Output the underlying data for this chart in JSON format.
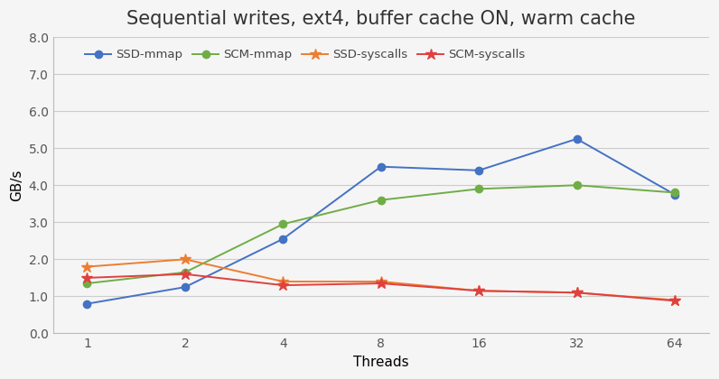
{
  "title": "Sequential writes, ext4, buffer cache ON, warm cache",
  "xlabel": "Threads",
  "ylabel": "GB/s",
  "x_values": [
    1,
    2,
    4,
    8,
    16,
    32,
    64
  ],
  "series": [
    {
      "label": "SSD-mmap",
      "color": "#4472C4",
      "marker": "o",
      "values": [
        0.8,
        1.25,
        2.55,
        4.5,
        4.4,
        5.25,
        3.75
      ]
    },
    {
      "label": "SCM-mmap",
      "color": "#70AD47",
      "marker": "o",
      "values": [
        1.35,
        1.65,
        2.95,
        3.6,
        3.9,
        4.0,
        3.8
      ]
    },
    {
      "label": "SSD-syscalls",
      "color": "#ED7D31",
      "marker": "*",
      "values": [
        1.8,
        2.0,
        1.4,
        1.4,
        1.15,
        1.1,
        0.9
      ]
    },
    {
      "label": "SCM-syscalls",
      "color": "#E04040",
      "marker": "*",
      "values": [
        1.5,
        1.6,
        1.3,
        1.35,
        1.15,
        1.1,
        0.88
      ]
    }
  ],
  "ylim": [
    0.0,
    8.0
  ],
  "yticks": [
    0.0,
    1.0,
    2.0,
    3.0,
    4.0,
    5.0,
    6.0,
    7.0,
    8.0
  ],
  "background_color": "#f5f5f5",
  "plot_bg_color": "#f5f5f5",
  "grid_color": "#cccccc",
  "title_fontsize": 15,
  "axis_label_fontsize": 11,
  "tick_fontsize": 10,
  "legend_fontsize": 9.5
}
